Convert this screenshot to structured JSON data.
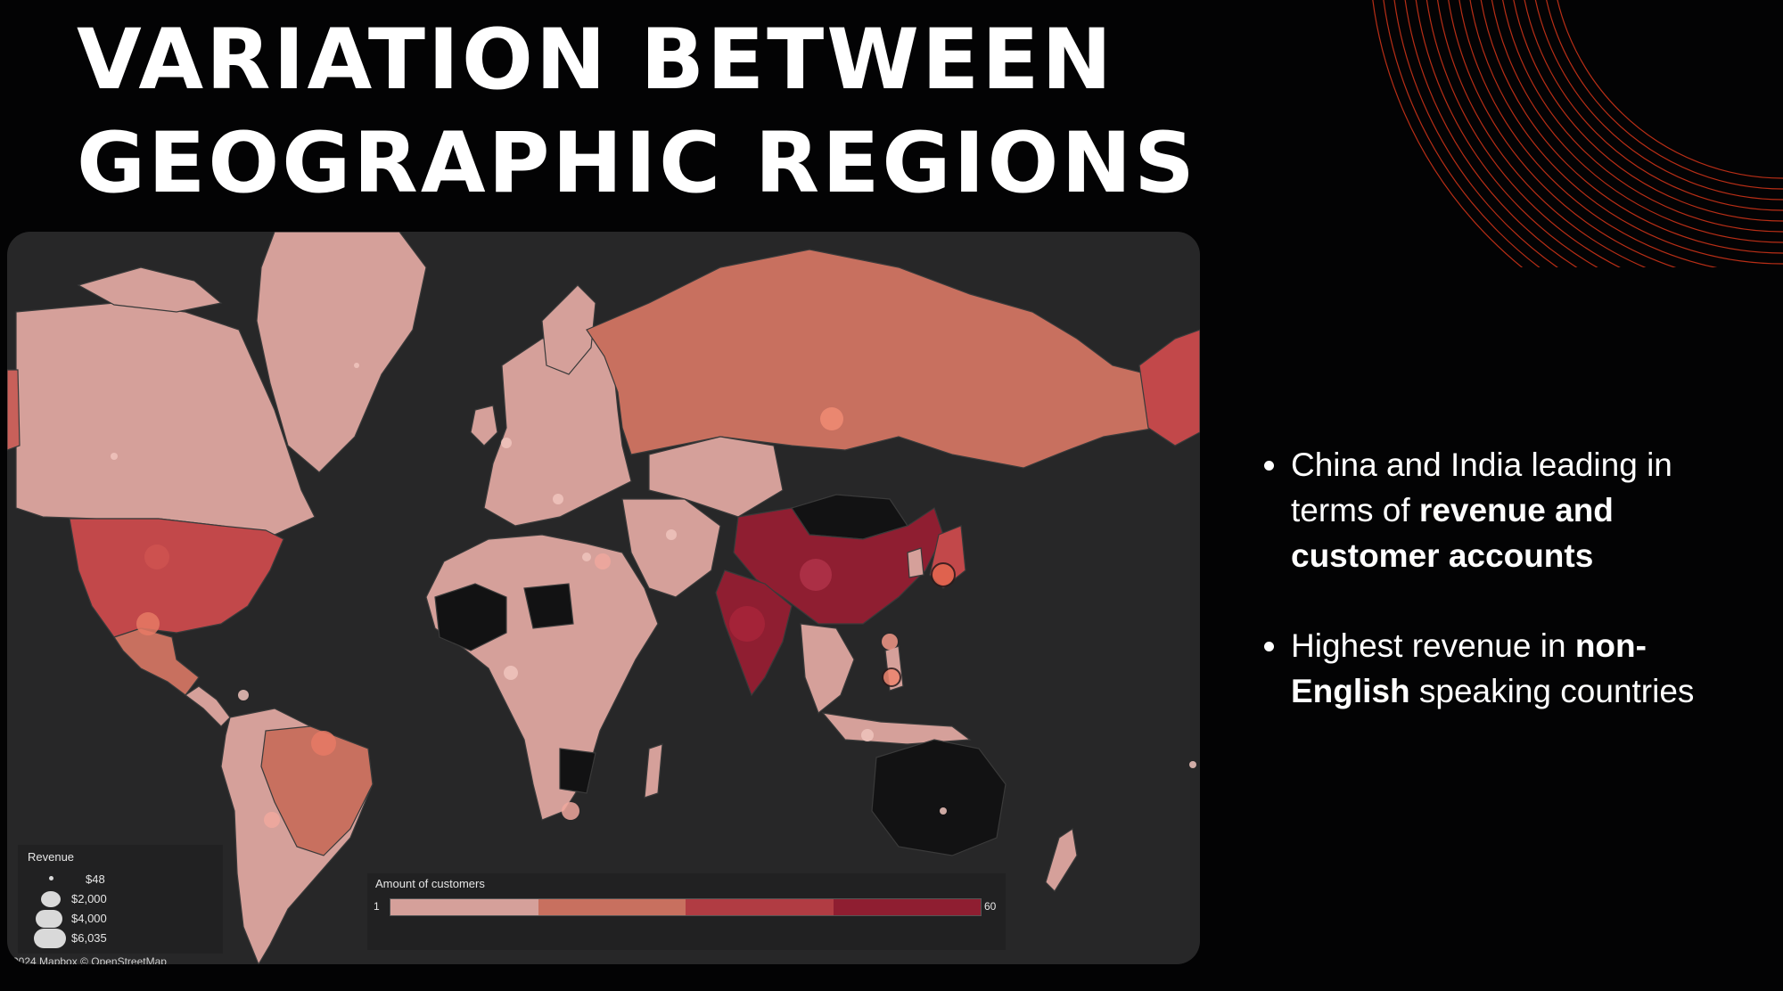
{
  "slide": {
    "title_line1": "VARIATION BETWEEN",
    "title_line2": "GEOGRAPHIC REGIONS"
  },
  "map": {
    "attribution": "2024 Mapbox © OpenStreetMap",
    "legend_revenue": {
      "title": "Revenue",
      "items": [
        "$48",
        "$2,000",
        "$4,000",
        "$6,035"
      ]
    },
    "legend_customers": {
      "title": "Amount of customers",
      "min": "1",
      "max": "60",
      "colors": [
        "#d5a09a",
        "#c8705f",
        "#b13c43",
        "#8f1e31"
      ]
    }
  },
  "bullets": [
    {
      "normal1": "China and India leading in terms of ",
      "bold1": "revenue and customer accounts"
    },
    {
      "normal1": "Highest revenue in ",
      "bold1": "non-English",
      "normal2": " speaking countries"
    }
  ],
  "colors": {
    "background": "#030304",
    "map_background": "#272728",
    "accent_lines": "#e0401f",
    "low_customers": "#d5a09a",
    "high_customers": "#8f1e31"
  }
}
